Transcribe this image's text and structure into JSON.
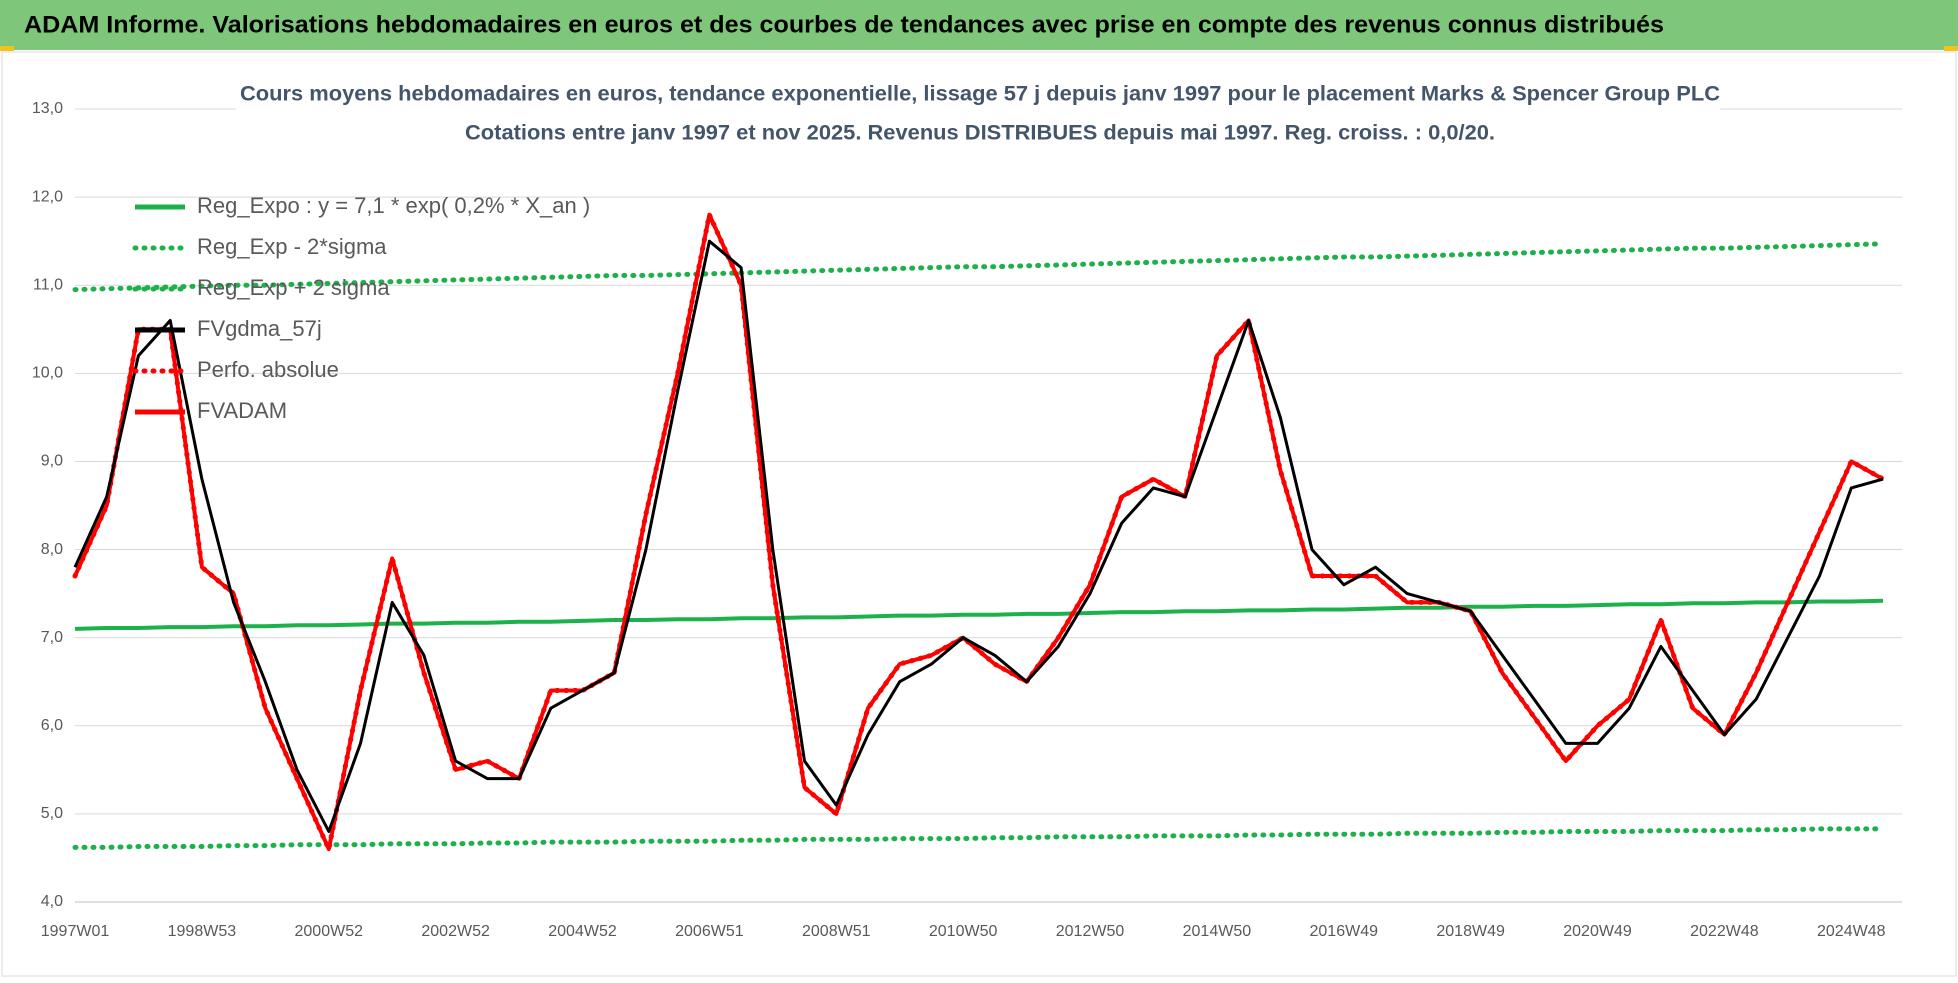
{
  "header": {
    "title": "ADAM Informe. Valorisations hebdomadaires en euros et des courbes de tendances avec prise en compte des revenus connus distribués"
  },
  "chart_data": {
    "type": "line",
    "title": "Cours moyens hebdomadaires en euros, tendance exponentielle, lissage 57 j depuis janv 1997  pour le placement Marks & Spencer Group PLC",
    "subtitle": "Cotations entre janv 1997 et nov 2025. Revenus DISTRIBUES depuis mai 1997. Reg. croiss. : 0,0/20.",
    "categories": [
      "1997W01",
      null,
      null,
      null,
      "1998W53",
      null,
      null,
      null,
      "2000W52",
      null,
      null,
      null,
      "2002W52",
      null,
      null,
      null,
      "2004W52",
      null,
      null,
      null,
      "2006W51",
      null,
      null,
      null,
      "2008W51",
      null,
      null,
      null,
      "2010W50",
      null,
      null,
      null,
      "2012W50",
      null,
      null,
      null,
      "2014W50",
      null,
      null,
      null,
      "2016W49",
      null,
      null,
      null,
      "2018W49",
      null,
      null,
      null,
      "2020W49",
      null,
      null,
      null,
      "2022W48",
      null,
      null,
      null,
      "2024W48",
      null
    ],
    "ylim": [
      4,
      13
    ],
    "yticks": [
      {
        "value": 4,
        "label": "4,0"
      },
      {
        "value": 5,
        "label": "5,0"
      },
      {
        "value": 6,
        "label": "6,0"
      },
      {
        "value": 7,
        "label": "7,0"
      },
      {
        "value": 8,
        "label": "8,0"
      },
      {
        "value": 9,
        "label": "9,0"
      },
      {
        "value": 10,
        "label": "10,0"
      },
      {
        "value": 11,
        "label": "11,0"
      },
      {
        "value": 12,
        "label": "12,0"
      },
      {
        "value": 13,
        "label": "13,0"
      }
    ],
    "grid": true,
    "legend": "upper left",
    "series": [
      {
        "name": "Reg_Expo : y = 7,1 * exp( 0,2% *  X_an )",
        "color": "#1db14b",
        "line_style": "solid",
        "values": [
          7.1,
          7.11,
          7.11,
          7.12,
          7.12,
          7.13,
          7.13,
          7.14,
          7.14,
          7.15,
          7.16,
          7.16,
          7.17,
          7.17,
          7.18,
          7.18,
          7.19,
          7.2,
          7.2,
          7.21,
          7.21,
          7.22,
          7.22,
          7.23,
          7.23,
          7.24,
          7.25,
          7.25,
          7.26,
          7.26,
          7.27,
          7.27,
          7.28,
          7.29,
          7.29,
          7.3,
          7.3,
          7.31,
          7.31,
          7.32,
          7.32,
          7.33,
          7.34,
          7.34,
          7.35,
          7.35,
          7.36,
          7.36,
          7.37,
          7.38,
          7.38,
          7.39,
          7.39,
          7.4,
          7.4,
          7.41,
          7.41,
          7.42
        ]
      },
      {
        "name": "Reg_Exp - 2*sigma",
        "color": "#1db14b",
        "line_style": "dotted",
        "values": [
          4.62,
          4.62,
          4.63,
          4.63,
          4.63,
          4.64,
          4.64,
          4.65,
          4.65,
          4.65,
          4.66,
          4.66,
          4.66,
          4.67,
          4.67,
          4.68,
          4.68,
          4.68,
          4.69,
          4.69,
          4.69,
          4.7,
          4.7,
          4.71,
          4.71,
          4.71,
          4.72,
          4.72,
          4.72,
          4.73,
          4.73,
          4.74,
          4.74,
          4.74,
          4.75,
          4.75,
          4.75,
          4.76,
          4.76,
          4.77,
          4.77,
          4.77,
          4.78,
          4.78,
          4.78,
          4.79,
          4.79,
          4.8,
          4.8,
          4.8,
          4.81,
          4.81,
          4.81,
          4.82,
          4.82,
          4.83,
          4.83,
          4.83
        ]
      },
      {
        "name": "Reg_Exp + 2 sigma",
        "color": "#1db14b",
        "line_style": "dotted",
        "values": [
          10.95,
          10.96,
          10.97,
          10.98,
          10.99,
          11.0,
          11.0,
          11.01,
          11.02,
          11.03,
          11.04,
          11.05,
          11.06,
          11.07,
          11.08,
          11.09,
          11.1,
          11.11,
          11.11,
          11.12,
          11.13,
          11.14,
          11.15,
          11.16,
          11.17,
          11.18,
          11.19,
          11.2,
          11.21,
          11.21,
          11.22,
          11.23,
          11.24,
          11.25,
          11.26,
          11.27,
          11.28,
          11.29,
          11.3,
          11.31,
          11.32,
          11.32,
          11.33,
          11.34,
          11.35,
          11.36,
          11.37,
          11.38,
          11.39,
          11.4,
          11.41,
          11.42,
          11.42,
          11.43,
          11.44,
          11.45,
          11.46,
          11.47
        ]
      },
      {
        "name": "FVgdma_57j",
        "color": "#000000",
        "line_style": "solid",
        "values": [
          7.8,
          8.6,
          10.2,
          10.6,
          8.8,
          7.4,
          6.5,
          5.5,
          4.8,
          5.8,
          7.4,
          6.8,
          5.6,
          5.4,
          5.4,
          6.2,
          6.4,
          6.6,
          8.0,
          9.8,
          11.5,
          11.2,
          8.0,
          5.6,
          5.1,
          5.9,
          6.5,
          6.7,
          7.0,
          6.8,
          6.5,
          6.9,
          7.5,
          8.3,
          8.7,
          8.6,
          9.6,
          10.6,
          9.5,
          8.0,
          7.6,
          7.8,
          7.5,
          7.4,
          7.3,
          6.8,
          6.3,
          5.8,
          5.8,
          6.2,
          6.9,
          6.4,
          5.9,
          6.3,
          7.0,
          7.7,
          8.7,
          8.8
        ]
      },
      {
        "name": "Perfo. absolue",
        "color": "#ff0000",
        "line_style": "dotted",
        "values": [
          7.7,
          8.5,
          10.5,
          10.5,
          7.8,
          7.5,
          6.2,
          5.4,
          4.6,
          6.4,
          7.9,
          6.6,
          5.5,
          5.6,
          5.4,
          6.4,
          6.4,
          6.6,
          8.4,
          10.0,
          11.8,
          11.0,
          7.6,
          5.3,
          5.0,
          6.2,
          6.7,
          6.8,
          7.0,
          6.7,
          6.5,
          7.0,
          7.6,
          8.6,
          8.8,
          8.6,
          10.2,
          10.6,
          8.9,
          7.7,
          7.7,
          7.7,
          7.4,
          7.4,
          7.3,
          6.6,
          6.1,
          5.6,
          6.0,
          6.3,
          7.2,
          6.2,
          5.9,
          6.6,
          7.4,
          8.2,
          9.0,
          8.8
        ]
      },
      {
        "name": "FVADAM",
        "color": "#ff0000",
        "line_style": "solid",
        "values": [
          7.7,
          8.5,
          10.5,
          10.5,
          7.8,
          7.5,
          6.2,
          5.4,
          4.6,
          6.4,
          7.9,
          6.6,
          5.5,
          5.6,
          5.4,
          6.4,
          6.4,
          6.6,
          8.4,
          10.0,
          11.8,
          11.0,
          7.6,
          5.3,
          5.0,
          6.2,
          6.7,
          6.8,
          7.0,
          6.7,
          6.5,
          7.0,
          7.6,
          8.6,
          8.8,
          8.6,
          10.2,
          10.6,
          8.9,
          7.7,
          7.7,
          7.7,
          7.4,
          7.4,
          7.3,
          6.6,
          6.1,
          5.6,
          6.0,
          6.3,
          7.2,
          6.2,
          5.9,
          6.6,
          7.4,
          8.2,
          9.0,
          8.8
        ]
      }
    ]
  }
}
